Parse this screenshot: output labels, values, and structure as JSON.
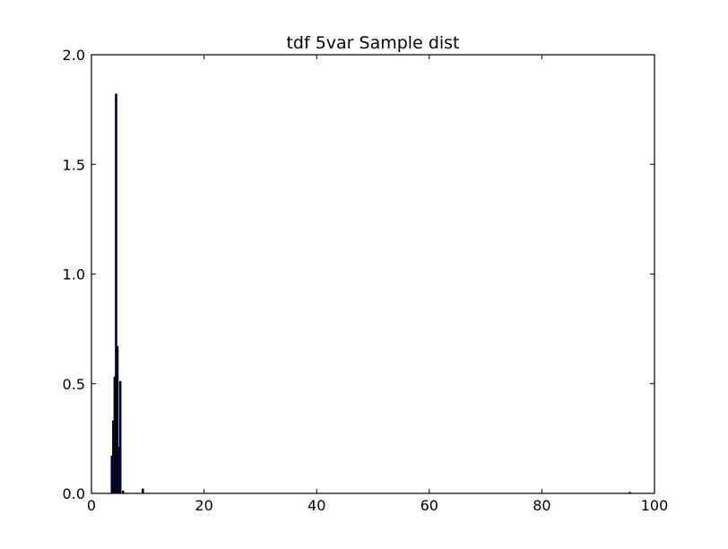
{
  "chart_data": {
    "type": "bar",
    "title": "tdf 5var Sample dist",
    "xlabel": "",
    "ylabel": "",
    "xlim": [
      0,
      100
    ],
    "ylim": [
      0,
      2.0
    ],
    "x_ticks": [
      0,
      20,
      40,
      60,
      80,
      100
    ],
    "x_tick_labels": [
      "0",
      "20",
      "40",
      "60",
      "80",
      "100"
    ],
    "y_ticks": [
      0,
      0.5,
      1.0,
      1.5,
      2.0
    ],
    "y_tick_labels": [
      "0.0",
      "0.5",
      "1.0",
      "1.5",
      "2.0"
    ],
    "grid": false,
    "bar_color": "#00007f",
    "edge_color": "#000000",
    "bins": [
      {
        "x": 3.5,
        "width": 0.25,
        "value": 0.17
      },
      {
        "x": 3.75,
        "width": 0.25,
        "value": 0.33
      },
      {
        "x": 4.0,
        "width": 0.25,
        "value": 0.53
      },
      {
        "x": 4.25,
        "width": 0.25,
        "value": 1.82
      },
      {
        "x": 4.5,
        "width": 0.25,
        "value": 0.67
      },
      {
        "x": 4.75,
        "width": 0.25,
        "value": 0.21
      },
      {
        "x": 5.0,
        "width": 0.25,
        "value": 0.51
      },
      {
        "x": 5.5,
        "width": 0.25,
        "value": 0.01
      },
      {
        "x": 9.0,
        "width": 0.25,
        "value": 0.02
      },
      {
        "x": 95.5,
        "width": 0.25,
        "value": 0.004
      }
    ]
  }
}
